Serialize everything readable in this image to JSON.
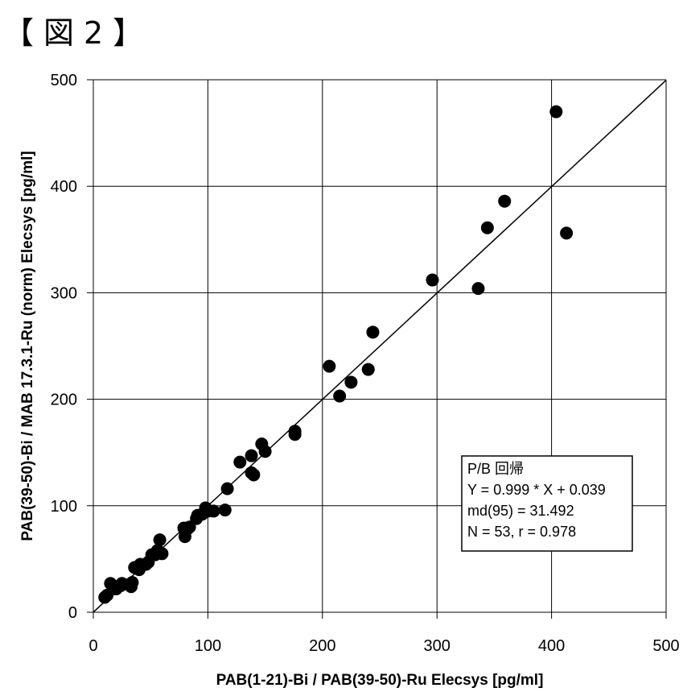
{
  "figure_label": "【図2】",
  "chart_data": {
    "type": "scatter",
    "title": "",
    "xlabel": "PAB(1-21)-Bi / PAB(39-50)-Ru Elecsys [pg/ml]",
    "ylabel": "PAB(39-50)-Bi / MAB 17.3.1-Ru (norm) Elecsys [pg/ml]",
    "xlim": [
      0,
      500
    ],
    "ylim": [
      0,
      500
    ],
    "xticks": [
      "0",
      "100",
      "200",
      "300",
      "400",
      "500"
    ],
    "yticks": [
      "0",
      "100",
      "200",
      "300",
      "400",
      "500"
    ],
    "grid": true,
    "regression": {
      "slope": 0.999,
      "intercept": 0.039
    },
    "legend": {
      "placement": "bottom-right",
      "lines": [
        "P/B 回帰",
        "Y = 0.999 * X + 0.039",
        "md(95) = 31.492",
        "N = 53,  r = 0.978"
      ]
    },
    "points": [
      [
        10,
        14
      ],
      [
        12,
        16
      ],
      [
        15,
        27
      ],
      [
        18,
        22
      ],
      [
        20,
        22
      ],
      [
        24,
        25
      ],
      [
        25,
        27
      ],
      [
        31,
        26
      ],
      [
        33,
        24
      ],
      [
        34,
        28
      ],
      [
        36,
        42
      ],
      [
        40,
        40
      ],
      [
        41,
        45
      ],
      [
        46,
        45
      ],
      [
        48,
        47
      ],
      [
        51,
        54
      ],
      [
        54,
        54
      ],
      [
        56,
        58
      ],
      [
        58,
        68
      ],
      [
        60,
        55
      ],
      [
        79,
        79
      ],
      [
        80,
        71
      ],
      [
        82,
        78
      ],
      [
        84,
        80
      ],
      [
        90,
        88
      ],
      [
        91,
        91
      ],
      [
        95,
        92
      ],
      [
        98,
        98
      ],
      [
        100,
        95
      ],
      [
        105,
        95
      ],
      [
        115,
        96
      ],
      [
        117,
        116
      ],
      [
        128,
        141
      ],
      [
        138,
        147
      ],
      [
        138,
        131
      ],
      [
        140,
        129
      ],
      [
        147,
        158
      ],
      [
        150,
        151
      ],
      [
        176,
        167
      ],
      [
        176,
        170
      ],
      [
        206,
        231
      ],
      [
        215,
        203
      ],
      [
        225,
        216
      ],
      [
        240,
        228
      ],
      [
        244,
        263
      ],
      [
        296,
        312
      ],
      [
        336,
        304
      ],
      [
        344,
        361
      ],
      [
        359,
        386
      ],
      [
        404,
        470
      ],
      [
        413,
        356
      ]
    ]
  }
}
